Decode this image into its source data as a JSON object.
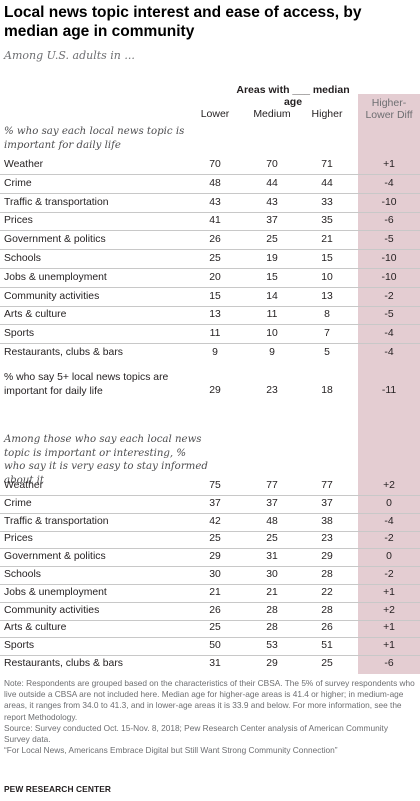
{
  "title": "Local news topic interest and ease of access, by median age in community",
  "subtitle": "Among U.S. adults in ...",
  "header": {
    "group": "Areas with ___ median age",
    "lower": "Lower",
    "medium": "Medium",
    "higher": "Higher",
    "diff": "Higher-Lower Diff"
  },
  "section1_label": "% who say each local news topic is important for daily life",
  "row5plus_label": "% who say 5+ local news topics are important for daily life",
  "section2_label": "Among those who say each local news topic is important or interesting, % who say it is very easy to stay informed about it",
  "chart_data": {
    "type": "table",
    "columns": [
      "Lower",
      "Medium",
      "Higher",
      "Higher-Lower Diff"
    ],
    "sections": [
      {
        "label": "% who say each local news topic is important for daily life",
        "rows": [
          {
            "label": "Weather",
            "values": [
              "70",
              "70",
              "71",
              "+1"
            ]
          },
          {
            "label": "Crime",
            "values": [
              "48",
              "44",
              "44",
              "-4"
            ]
          },
          {
            "label": "Traffic & transportation",
            "values": [
              "43",
              "43",
              "33",
              "-10"
            ]
          },
          {
            "label": "Prices",
            "values": [
              "41",
              "37",
              "35",
              "-6"
            ]
          },
          {
            "label": "Government & politics",
            "values": [
              "26",
              "25",
              "21",
              "-5"
            ]
          },
          {
            "label": "Schools",
            "values": [
              "25",
              "19",
              "15",
              "-10"
            ]
          },
          {
            "label": "Jobs & unemployment",
            "values": [
              "20",
              "15",
              "10",
              "-10"
            ]
          },
          {
            "label": "Community activities",
            "values": [
              "15",
              "14",
              "13",
              "-2"
            ]
          },
          {
            "label": "Arts & culture",
            "values": [
              "13",
              "11",
              "8",
              "-5"
            ]
          },
          {
            "label": "Sports",
            "values": [
              "11",
              "10",
              "7",
              "-4"
            ]
          },
          {
            "label": "Restaurants, clubs & bars",
            "values": [
              "9",
              "9",
              "5",
              "-4"
            ]
          }
        ]
      },
      {
        "label": "% who say 5+ local news topics are important for daily life",
        "rows": [
          {
            "label": "% who say 5+ local news topics are important for daily life",
            "values": [
              "29",
              "23",
              "18",
              "-11"
            ]
          }
        ]
      },
      {
        "label": "Among those who say each local news topic is important or interesting, % who say it is very easy to stay informed about it",
        "rows": [
          {
            "label": "Weather",
            "values": [
              "75",
              "77",
              "77",
              "+2"
            ]
          },
          {
            "label": "Crime",
            "values": [
              "37",
              "37",
              "37",
              "0"
            ]
          },
          {
            "label": "Traffic & transportation",
            "values": [
              "42",
              "48",
              "38",
              "-4"
            ]
          },
          {
            "label": "Prices",
            "values": [
              "25",
              "25",
              "23",
              "-2"
            ]
          },
          {
            "label": "Government & politics",
            "values": [
              "29",
              "31",
              "29",
              "0"
            ]
          },
          {
            "label": "Schools",
            "values": [
              "30",
              "30",
              "28",
              "-2"
            ]
          },
          {
            "label": "Jobs & unemployment",
            "values": [
              "21",
              "21",
              "22",
              "+1"
            ]
          },
          {
            "label": "Community activities",
            "values": [
              "26",
              "28",
              "28",
              "+2"
            ]
          },
          {
            "label": "Arts & culture",
            "values": [
              "25",
              "28",
              "26",
              "+1"
            ]
          },
          {
            "label": "Sports",
            "values": [
              "50",
              "53",
              "51",
              "+1"
            ]
          },
          {
            "label": "Restaurants, clubs & bars",
            "values": [
              "31",
              "29",
              "25",
              "-6"
            ]
          }
        ]
      }
    ]
  },
  "notes": [
    "Note: Respondents are grouped based on the characteristics of their CBSA. The 5% of survey respondents who live outside a CBSA are not included here. Median age for higher-age areas is 41.4 or higher; in medium-age areas, it ranges from 34.0 to 41.3, and in lower-age areas it is 33.9 and below. For more information, see the report Methodology.",
    "Source: Survey conducted Oct. 15-Nov. 8, 2018; Pew Research Center analysis of American Community Survey data.",
    "“For Local News, Americans Embrace Digital but Still Want Strong Community Connection”"
  ],
  "brand": "PEW RESEARCH CENTER",
  "colors": {
    "diff_band": "#e4cdd2",
    "text": "#231f20",
    "muted": "#6d6e71"
  }
}
